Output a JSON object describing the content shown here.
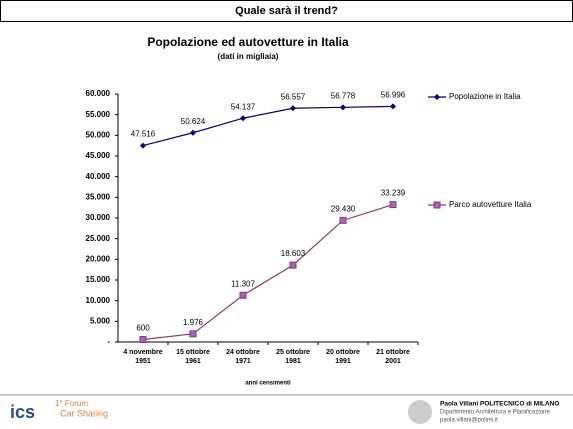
{
  "header": {
    "title": "Quale sarà il trend?"
  },
  "chart_data": {
    "type": "line",
    "title": "Popolazione ed autovetture in Italia",
    "subtitle": "(dati in migliaia)",
    "x_label": "anni censimenti",
    "categories": [
      "4 novembre 1951",
      "15 ottobre 1961",
      "24 ottobre 1971",
      "25 ottobre 1981",
      "20 ottobre 1991",
      "21 ottobre 2001"
    ],
    "series": [
      {
        "name": "Popolazione in Italia",
        "color": "#000080",
        "marker": "diamond",
        "values": [
          47516,
          50624,
          54137,
          56557,
          56778,
          56996
        ],
        "value_labels": [
          "47.516",
          "50.624",
          "54.137",
          "56.557",
          "56.778",
          "56.996"
        ]
      },
      {
        "name": "Parco autovetture Italia",
        "color": "#993366",
        "marker": "square",
        "values": [
          600,
          1976,
          11307,
          18603,
          29430,
          33239
        ],
        "value_labels": [
          "600",
          "1.976",
          "11.307",
          "18.603",
          "29.430",
          "33.239"
        ]
      }
    ],
    "ylim": [
      0,
      60000
    ],
    "yticks": [
      {
        "value": 0,
        "label": "-"
      },
      {
        "value": 5000,
        "label": "5.000"
      },
      {
        "value": 10000,
        "label": "10.000"
      },
      {
        "value": 15000,
        "label": "15.000"
      },
      {
        "value": 20000,
        "label": "20.000"
      },
      {
        "value": 25000,
        "label": "25.000"
      },
      {
        "value": 30000,
        "label": "30.000"
      },
      {
        "value": 35000,
        "label": "35.000"
      },
      {
        "value": 40000,
        "label": "40.000"
      },
      {
        "value": 45000,
        "label": "45.000"
      },
      {
        "value": 50000,
        "label": "50.000"
      },
      {
        "value": 55000,
        "label": "55.000"
      },
      {
        "value": 60000,
        "label": "60.000"
      }
    ],
    "legend": "right"
  },
  "footer": {
    "logo": "ics",
    "event_line1": "1° Forum",
    "event_line2": "Car Sharing",
    "author": "Paola Villani POLITECNICO di MILANO",
    "department": "Dipartimento Architettura e Pianificazione",
    "email": "paola.villani@polimi.it"
  }
}
